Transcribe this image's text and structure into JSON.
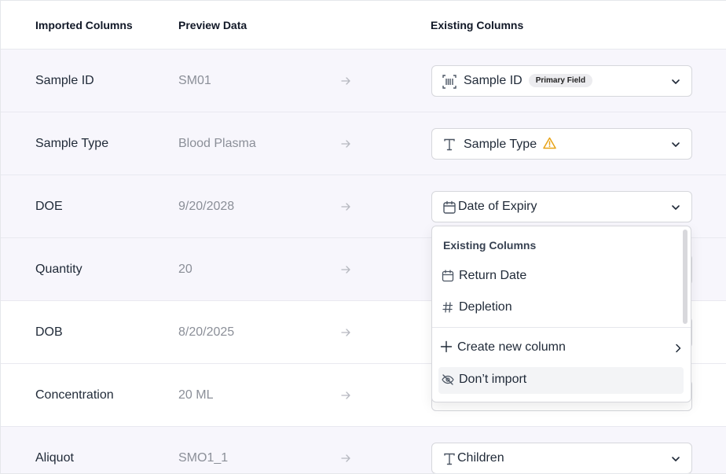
{
  "header": {
    "imported_columns": "Imported Columns",
    "preview_data": "Preview Data",
    "existing_columns": "Existing Columns"
  },
  "rows": [
    {
      "name": "Sample ID",
      "preview": "SM01",
      "mapped": "Sample ID",
      "icon": "barcode-icon",
      "badge": "Primary Field"
    },
    {
      "name": "Sample Type",
      "preview": "Blood Plasma",
      "mapped": "Sample Type",
      "icon": "text-type-icon",
      "warning": true
    },
    {
      "name": "DOE",
      "preview": "9/20/2028",
      "mapped": "Date of Expiry",
      "icon": "calendar-icon"
    },
    {
      "name": "Quantity",
      "preview": "20",
      "mapped": ""
    },
    {
      "name": "DOB",
      "preview": "8/20/2025",
      "mapped": ""
    },
    {
      "name": "Concentration",
      "preview": "20 ML",
      "mapped": ""
    },
    {
      "name": "Aliquot",
      "preview": "SMO1_1",
      "mapped": "Children",
      "icon": "text-type-icon"
    }
  ],
  "dropdown": {
    "header": "Existing Columns",
    "options": [
      {
        "label": "Return Date",
        "icon": "calendar-icon"
      },
      {
        "label": "Depletion",
        "icon": "hash-icon"
      }
    ],
    "create_new": "Create new column",
    "dont_import": "Don’t import"
  },
  "colors": {
    "row_shaded": "#f7f6fc",
    "warning": "#e8a317",
    "border": "#d6d7dc"
  }
}
